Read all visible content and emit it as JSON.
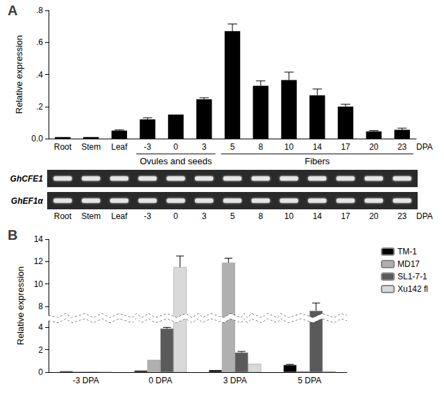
{
  "chart_data": [
    {
      "type": "bar",
      "title": "A",
      "y_label": "Relative expression",
      "categories": [
        "Root",
        "Stem",
        "Leaf",
        "-3",
        "0",
        "3",
        "5",
        "8",
        "10",
        "14",
        "17",
        "20",
        "23"
      ],
      "values": [
        0.01,
        0.01,
        0.05,
        0.12,
        0.15,
        0.245,
        0.67,
        0.33,
        0.365,
        0.27,
        0.2,
        0.045,
        0.055
      ],
      "errors": [
        0,
        0,
        0.005,
        0.01,
        0,
        0.01,
        0.045,
        0.03,
        0.05,
        0.04,
        0.015,
        0.005,
        0.01
      ],
      "color": "#000000",
      "ylim": [
        0,
        0.8
      ],
      "yticks": [
        {
          "value": 0,
          "label": "0.0"
        },
        {
          "value": 0.2,
          "label": ".2"
        },
        {
          "value": 0.4,
          "label": ".4"
        },
        {
          "value": 0.6,
          "label": ".6"
        },
        {
          "value": 0.8,
          "label": ".8"
        }
      ],
      "grid": false,
      "annotations": [
        {
          "text": "Ovules and seeds",
          "from": "-3",
          "to": "3"
        },
        {
          "text": "Fibers",
          "from": "5",
          "to": "23"
        },
        {
          "text": "DPA",
          "at": "23"
        }
      ]
    },
    {
      "type": "bar",
      "title": "B",
      "y_label": "Relative expression",
      "categories": [
        "-3 DPA",
        "0 DPA",
        "3 DPA",
        "5 DPA"
      ],
      "series": [
        {
          "name": "TM-1",
          "color": "#000000",
          "values": [
            0.1,
            0.15,
            0.2,
            0.65
          ],
          "errors": [
            0,
            0,
            0,
            0.05
          ]
        },
        {
          "name": "MD17",
          "color": "#b0b0b0",
          "values": [
            0.05,
            1.1,
            11.9,
            0.1
          ],
          "errors": [
            0,
            0,
            0.4,
            0
          ]
        },
        {
          "name": "SL1-7-1",
          "color": "#5a5a5a",
          "values": [
            0.05,
            3.9,
            1.75,
            7.6
          ],
          "errors": [
            0,
            0.1,
            0.1,
            0.7
          ]
        },
        {
          "name": "Xu142 fl",
          "color": "#d9d9d9",
          "values": [
            0.03,
            11.5,
            0.75,
            0.1
          ],
          "errors": [
            0,
            1.0,
            0,
            0
          ]
        }
      ],
      "ylim": [
        0,
        14
      ],
      "yticks": [
        0,
        2,
        4,
        8,
        10,
        12,
        14
      ],
      "y_break": [
        4.6,
        7.2
      ],
      "grid": false,
      "legend": "upper right"
    }
  ],
  "gel": {
    "rows": [
      "GhCFE1",
      "GhEF1α"
    ],
    "lanes": [
      "Root",
      "Stem",
      "Leaf",
      "-3",
      "0",
      "3",
      "5",
      "8",
      "10",
      "14",
      "17",
      "20",
      "23"
    ],
    "unit": "DPA"
  }
}
